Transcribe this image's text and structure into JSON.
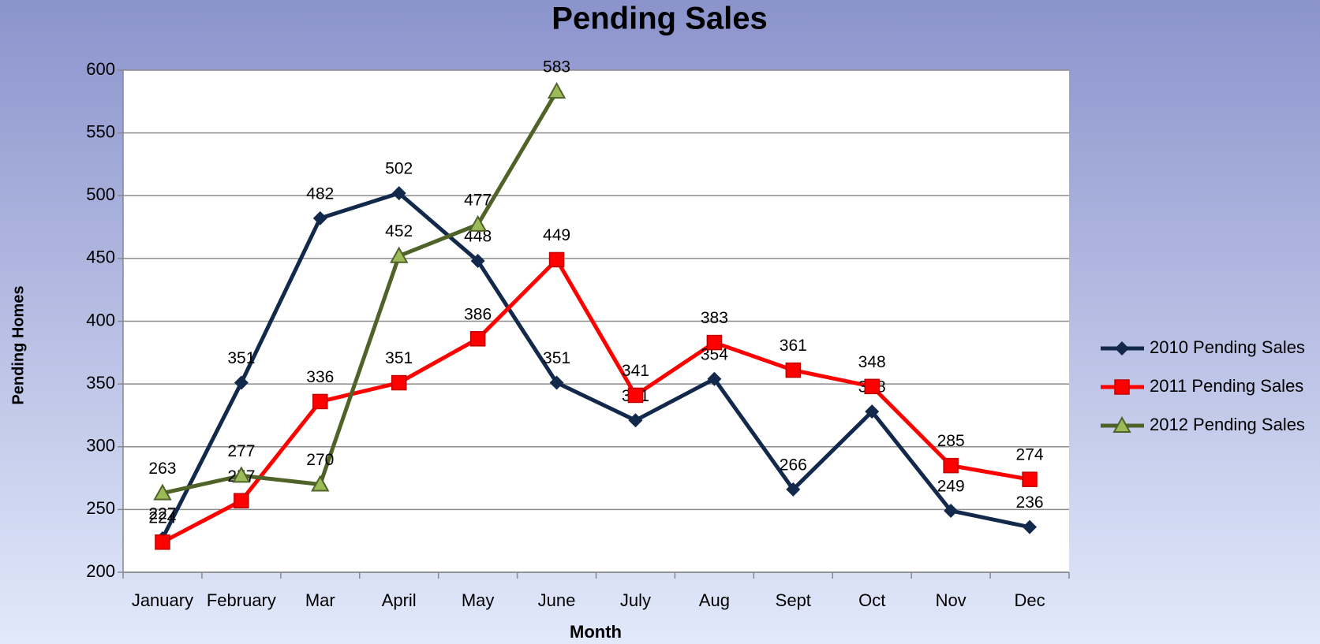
{
  "chart_data": {
    "type": "line",
    "title": "Pending Sales",
    "x_label": "Month",
    "y_label": "Pending Homes",
    "categories": [
      "January",
      "February",
      "Mar",
      "April",
      "May",
      "June",
      "July",
      "Aug",
      "Sept",
      "Oct",
      "Nov",
      "Dec"
    ],
    "series": [
      {
        "name": "2010 Pending Sales",
        "color": "#13294b",
        "marker": "diamond",
        "values": [
          227,
          351,
          482,
          502,
          448,
          351,
          321,
          354,
          266,
          328,
          249,
          236
        ]
      },
      {
        "name": "2011 Pending Sales",
        "color": "#ff0000",
        "marker": "square",
        "values": [
          224,
          257,
          336,
          351,
          386,
          449,
          341,
          383,
          361,
          348,
          285,
          274
        ]
      },
      {
        "name": "2012 Pending Sales",
        "color": "#4f6228",
        "marker": "triangle",
        "values": [
          263,
          277,
          270,
          452,
          477,
          583,
          null,
          null,
          null,
          null,
          null,
          null
        ]
      }
    ],
    "ylim": [
      200,
      600
    ],
    "yticks": [
      200,
      250,
      300,
      350,
      400,
      450,
      500,
      550,
      600
    ],
    "grid": true,
    "legend": "right"
  }
}
